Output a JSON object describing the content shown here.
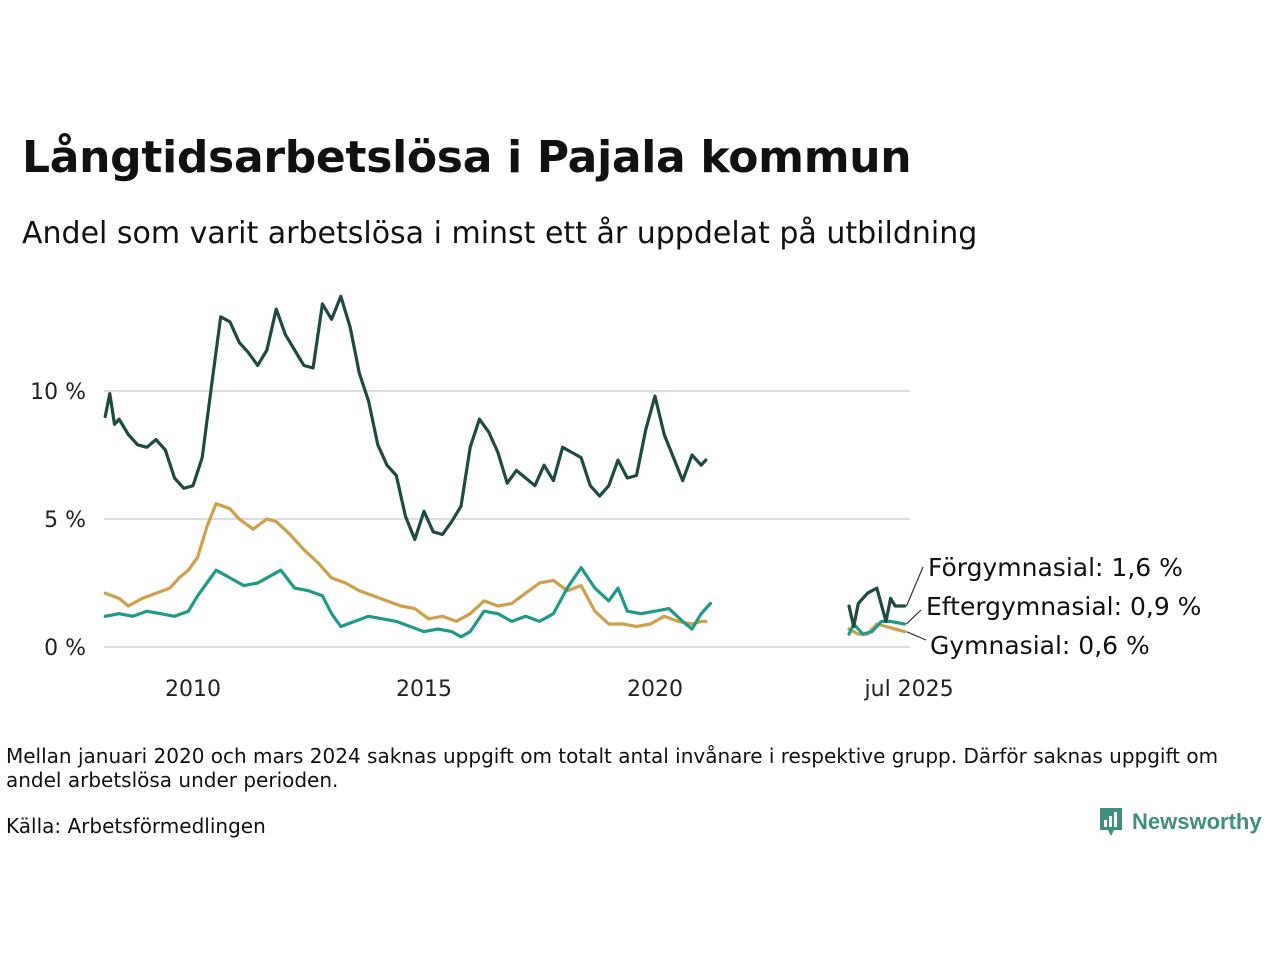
{
  "title": "Långtidsarbetslösa i Pajala kommun",
  "subtitle": "Andel som varit arbetslösa i minst ett år uppdelat på utbildning",
  "note": "Mellan januari 2020 och mars 2024 saknas uppgift om totalt antal invånare i respektive grupp. Därför saknas uppgift om andel arbetslösa under perioden.",
  "source": "Källa: Arbetsförmedlingen",
  "brand": "Newsworthy",
  "colors": {
    "forgymnasial": "#1f4a42",
    "eftergymnasial": "#1f9a86",
    "gymnasial": "#cf9f4a",
    "grid": "#dddddd"
  },
  "chart_data": {
    "type": "line",
    "ylim": [
      0,
      14
    ],
    "yticks": [
      0,
      5,
      10
    ],
    "ytick_labels": [
      "0 %",
      "5 %",
      "10 %"
    ],
    "xticks": [
      {
        "value": 2010,
        "label": "2010"
      },
      {
        "value": 2015,
        "label": "2015"
      },
      {
        "value": 2020,
        "label": "2020"
      },
      {
        "value": 2025.5,
        "label": "jul 2025"
      }
    ],
    "series": [
      {
        "key": "forgymnasial",
        "name": "Förgymnasial",
        "end_label": "Förgymnasial: 1,6 %",
        "segments": [
          [
            [
              2008.1,
              9.0
            ],
            [
              2008.2,
              9.9
            ],
            [
              2008.3,
              8.7
            ],
            [
              2008.4,
              8.9
            ],
            [
              2008.6,
              8.3
            ],
            [
              2008.8,
              7.9
            ],
            [
              2009.0,
              7.8
            ],
            [
              2009.2,
              8.1
            ],
            [
              2009.4,
              7.7
            ],
            [
              2009.6,
              6.6
            ],
            [
              2009.8,
              6.2
            ],
            [
              2010.0,
              6.3
            ],
            [
              2010.2,
              7.4
            ],
            [
              2010.4,
              10.2
            ],
            [
              2010.6,
              12.9
            ],
            [
              2010.8,
              12.7
            ],
            [
              2011.0,
              11.9
            ],
            [
              2011.2,
              11.5
            ],
            [
              2011.4,
              11.0
            ],
            [
              2011.6,
              11.6
            ],
            [
              2011.8,
              13.2
            ],
            [
              2012.0,
              12.2
            ],
            [
              2012.2,
              11.6
            ],
            [
              2012.4,
              11.0
            ],
            [
              2012.6,
              10.9
            ],
            [
              2012.8,
              13.4
            ],
            [
              2013.0,
              12.8
            ],
            [
              2013.2,
              13.7
            ],
            [
              2013.4,
              12.5
            ],
            [
              2013.6,
              10.7
            ],
            [
              2013.8,
              9.6
            ],
            [
              2014.0,
              7.9
            ],
            [
              2014.2,
              7.1
            ],
            [
              2014.4,
              6.7
            ],
            [
              2014.6,
              5.1
            ],
            [
              2014.8,
              4.2
            ],
            [
              2015.0,
              5.3
            ],
            [
              2015.2,
              4.5
            ],
            [
              2015.4,
              4.4
            ],
            [
              2015.6,
              4.9
            ],
            [
              2015.8,
              5.5
            ],
            [
              2016.0,
              7.8
            ],
            [
              2016.2,
              8.9
            ],
            [
              2016.4,
              8.4
            ],
            [
              2016.6,
              7.6
            ],
            [
              2016.8,
              6.4
            ],
            [
              2017.0,
              6.9
            ],
            [
              2017.2,
              6.6
            ],
            [
              2017.4,
              6.3
            ],
            [
              2017.6,
              7.1
            ],
            [
              2017.8,
              6.5
            ],
            [
              2018.0,
              7.8
            ],
            [
              2018.2,
              7.6
            ],
            [
              2018.4,
              7.4
            ],
            [
              2018.6,
              6.3
            ],
            [
              2018.8,
              5.9
            ],
            [
              2019.0,
              6.3
            ],
            [
              2019.2,
              7.3
            ],
            [
              2019.4,
              6.6
            ],
            [
              2019.6,
              6.7
            ],
            [
              2019.8,
              8.5
            ],
            [
              2020.0,
              9.8
            ],
            [
              2020.2,
              8.3
            ],
            [
              2020.4,
              7.4
            ],
            [
              2020.6,
              6.5
            ],
            [
              2020.8,
              7.5
            ],
            [
              2021.0,
              7.1
            ],
            [
              2021.1,
              7.3
            ]
          ],
          [
            [
              2024.2,
              1.6
            ],
            [
              2024.3,
              0.8
            ],
            [
              2024.4,
              1.7
            ],
            [
              2024.6,
              2.1
            ],
            [
              2024.8,
              2.3
            ],
            [
              2025.0,
              1.0
            ],
            [
              2025.1,
              1.9
            ],
            [
              2025.2,
              1.6
            ],
            [
              2025.4,
              1.6
            ]
          ]
        ]
      },
      {
        "key": "eftergymnasial",
        "name": "Eftergymnasial",
        "end_label": "Eftergymnasial: 0,9 %",
        "segments": [
          [
            [
              2008.1,
              1.2
            ],
            [
              2008.4,
              1.3
            ],
            [
              2008.7,
              1.2
            ],
            [
              2009.0,
              1.4
            ],
            [
              2009.3,
              1.3
            ],
            [
              2009.6,
              1.2
            ],
            [
              2009.9,
              1.4
            ],
            [
              2010.1,
              2.0
            ],
            [
              2010.3,
              2.5
            ],
            [
              2010.5,
              3.0
            ],
            [
              2010.8,
              2.7
            ],
            [
              2011.1,
              2.4
            ],
            [
              2011.4,
              2.5
            ],
            [
              2011.7,
              2.8
            ],
            [
              2011.9,
              3.0
            ],
            [
              2012.2,
              2.3
            ],
            [
              2012.5,
              2.2
            ],
            [
              2012.8,
              2.0
            ],
            [
              2013.0,
              1.3
            ],
            [
              2013.2,
              0.8
            ],
            [
              2013.5,
              1.0
            ],
            [
              2013.8,
              1.2
            ],
            [
              2014.1,
              1.1
            ],
            [
              2014.4,
              1.0
            ],
            [
              2014.7,
              0.8
            ],
            [
              2015.0,
              0.6
            ],
            [
              2015.3,
              0.7
            ],
            [
              2015.6,
              0.6
            ],
            [
              2015.8,
              0.4
            ],
            [
              2016.0,
              0.6
            ],
            [
              2016.3,
              1.4
            ],
            [
              2016.6,
              1.3
            ],
            [
              2016.9,
              1.0
            ],
            [
              2017.2,
              1.2
            ],
            [
              2017.5,
              1.0
            ],
            [
              2017.8,
              1.3
            ],
            [
              2018.1,
              2.3
            ],
            [
              2018.4,
              3.1
            ],
            [
              2018.7,
              2.3
            ],
            [
              2019.0,
              1.8
            ],
            [
              2019.2,
              2.3
            ],
            [
              2019.4,
              1.4
            ],
            [
              2019.7,
              1.3
            ],
            [
              2020.0,
              1.4
            ],
            [
              2020.3,
              1.5
            ],
            [
              2020.6,
              1.0
            ],
            [
              2020.8,
              0.7
            ],
            [
              2021.0,
              1.3
            ],
            [
              2021.2,
              1.7
            ]
          ],
          [
            [
              2024.2,
              0.5
            ],
            [
              2024.3,
              0.9
            ],
            [
              2024.5,
              0.5
            ],
            [
              2024.7,
              0.6
            ],
            [
              2024.9,
              1.0
            ],
            [
              2025.1,
              1.0
            ],
            [
              2025.4,
              0.9
            ]
          ]
        ]
      },
      {
        "key": "gymnasial",
        "name": "Gymnasial",
        "end_label": "Gymnasial: 0,6 %",
        "segments": [
          [
            [
              2008.1,
              2.1
            ],
            [
              2008.4,
              1.9
            ],
            [
              2008.6,
              1.6
            ],
            [
              2008.9,
              1.9
            ],
            [
              2009.2,
              2.1
            ],
            [
              2009.5,
              2.3
            ],
            [
              2009.7,
              2.7
            ],
            [
              2009.9,
              3.0
            ],
            [
              2010.1,
              3.5
            ],
            [
              2010.3,
              4.7
            ],
            [
              2010.5,
              5.6
            ],
            [
              2010.8,
              5.4
            ],
            [
              2011.0,
              5.0
            ],
            [
              2011.3,
              4.6
            ],
            [
              2011.6,
              5.0
            ],
            [
              2011.8,
              4.9
            ],
            [
              2012.1,
              4.4
            ],
            [
              2012.4,
              3.8
            ],
            [
              2012.7,
              3.3
            ],
            [
              2013.0,
              2.7
            ],
            [
              2013.3,
              2.5
            ],
            [
              2013.6,
              2.2
            ],
            [
              2013.9,
              2.0
            ],
            [
              2014.2,
              1.8
            ],
            [
              2014.5,
              1.6
            ],
            [
              2014.8,
              1.5
            ],
            [
              2015.1,
              1.1
            ],
            [
              2015.4,
              1.2
            ],
            [
              2015.7,
              1.0
            ],
            [
              2016.0,
              1.3
            ],
            [
              2016.3,
              1.8
            ],
            [
              2016.6,
              1.6
            ],
            [
              2016.9,
              1.7
            ],
            [
              2017.2,
              2.1
            ],
            [
              2017.5,
              2.5
            ],
            [
              2017.8,
              2.6
            ],
            [
              2018.1,
              2.2
            ],
            [
              2018.4,
              2.4
            ],
            [
              2018.7,
              1.4
            ],
            [
              2019.0,
              0.9
            ],
            [
              2019.3,
              0.9
            ],
            [
              2019.6,
              0.8
            ],
            [
              2019.9,
              0.9
            ],
            [
              2020.2,
              1.2
            ],
            [
              2020.5,
              1.0
            ],
            [
              2020.8,
              0.9
            ],
            [
              2021.0,
              1.0
            ],
            [
              2021.1,
              1.0
            ]
          ],
          [
            [
              2024.2,
              0.7
            ],
            [
              2024.4,
              0.5
            ],
            [
              2024.6,
              0.5
            ],
            [
              2024.8,
              0.9
            ],
            [
              2025.0,
              0.8
            ],
            [
              2025.2,
              0.7
            ],
            [
              2025.4,
              0.6
            ]
          ]
        ]
      }
    ]
  }
}
